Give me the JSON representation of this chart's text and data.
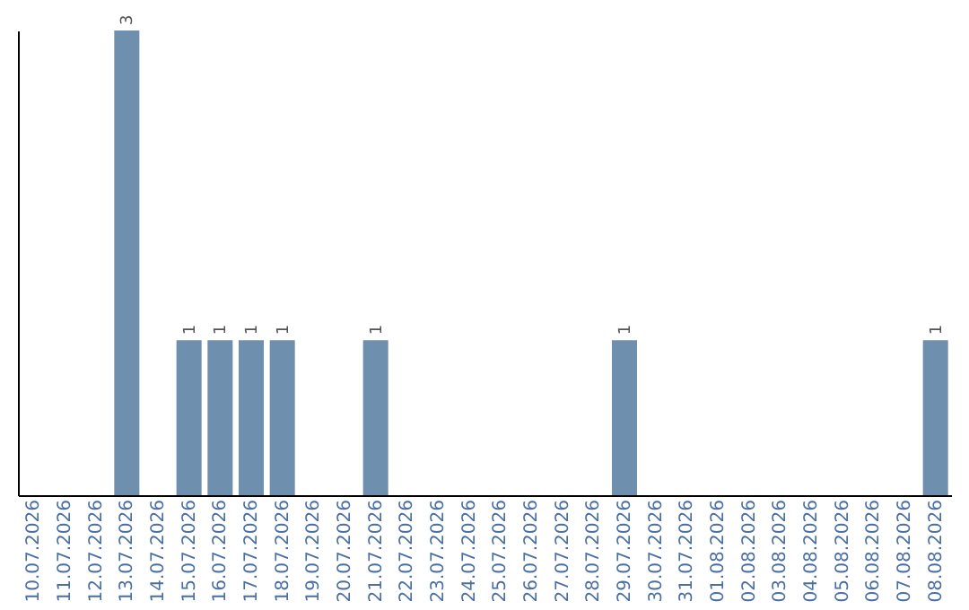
{
  "chart_data": {
    "type": "bar",
    "categories": [
      "10.07.2026",
      "11.07.2026",
      "12.07.2026",
      "13.07.2026",
      "14.07.2026",
      "15.07.2026",
      "16.07.2026",
      "17.07.2026",
      "18.07.2026",
      "19.07.2026",
      "20.07.2026",
      "21.07.2026",
      "22.07.2026",
      "23.07.2026",
      "24.07.2026",
      "25.07.2026",
      "26.07.2026",
      "27.07.2026",
      "28.07.2026",
      "29.07.2026",
      "30.07.2026",
      "31.07.2026",
      "01.08.2026",
      "02.08.2026",
      "03.08.2026",
      "04.08.2026",
      "05.08.2026",
      "06.08.2026",
      "07.08.2026",
      "08.08.2026"
    ],
    "values": [
      null,
      null,
      null,
      3,
      null,
      1,
      1,
      1,
      1,
      null,
      null,
      1,
      null,
      null,
      null,
      null,
      null,
      null,
      null,
      1,
      null,
      null,
      null,
      null,
      null,
      null,
      null,
      null,
      null,
      1
    ],
    "color": "#6f8fae",
    "data_labels": true,
    "tick_labels": "x",
    "grid": false
  }
}
